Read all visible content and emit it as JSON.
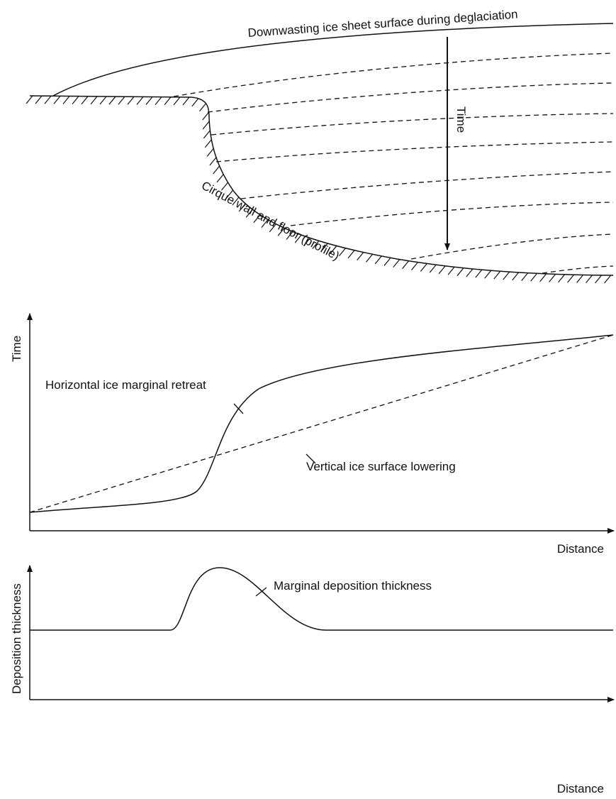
{
  "profile": {
    "surface_label": "Downwasting ice sheet surface during deglaciation",
    "time_label": "Time",
    "cirque_label": "Cirque wall and floor (profile)"
  },
  "time_chart": {
    "y_label": "Time",
    "x_label": "Distance",
    "retreat_label": "Horizontal ice marginal retreat",
    "lowering_label": "Vertical ice surface lowering"
  },
  "deposition_chart": {
    "y_label": "Deposition thickness",
    "x_label": "Distance",
    "curve_label": "Marginal deposition thickness"
  }
}
